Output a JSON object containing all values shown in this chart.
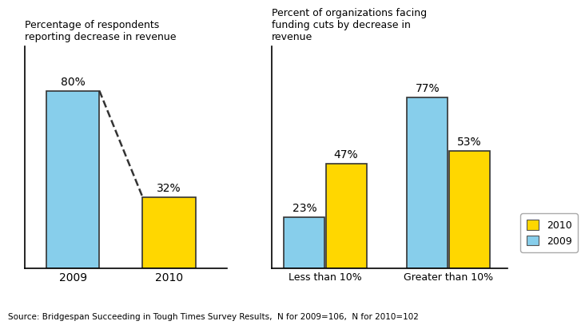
{
  "left_chart": {
    "title": "Percentage of respondents\nreporting decrease in revenue",
    "categories": [
      "2009",
      "2010"
    ],
    "val_2009": 80,
    "val_2010": 32,
    "bar_color_2009": "#87CEEB",
    "bar_color_2010": "#FFD700",
    "bar_edge_color": "#333333",
    "label_2009": "80%",
    "label_2010": "32%"
  },
  "right_chart": {
    "title": "Percent of organizations facing\nfunding cuts by decrease in\nrevenue",
    "categories": [
      "Less than 10%",
      "Greater than 10%"
    ],
    "values_2009": [
      23,
      77
    ],
    "values_2010": [
      47,
      53
    ],
    "bar_color_2009": "#87CEEB",
    "bar_color_2010": "#FFD700",
    "bar_edge_color": "#333333",
    "labels_2009": [
      "23%",
      "77%"
    ],
    "labels_2010": [
      "47%",
      "53%"
    ]
  },
  "legend": {
    "labels": [
      "2010",
      "2009"
    ],
    "colors": [
      "#FFD700",
      "#87CEEB"
    ]
  },
  "source_text": "Source: Bridgespan Succeeding in Tough Times Survey Results,  N for 2009=106,  N for 2010=102",
  "dashed_line_color": "#333333",
  "background_color": "#ffffff"
}
